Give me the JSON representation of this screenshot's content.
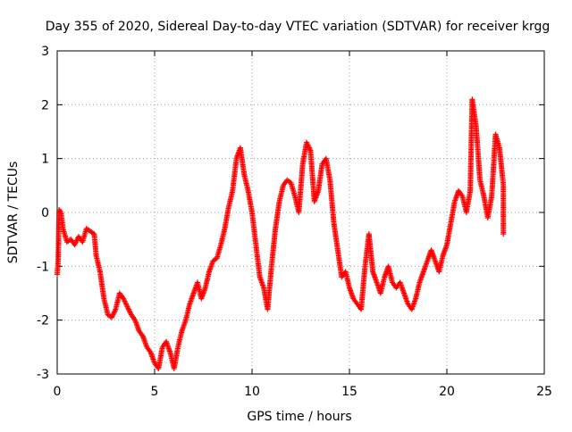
{
  "chart_data": {
    "type": "scatter",
    "title": "Day 355 of 2020, Sidereal Day-to-day VTEC variation (SDTVAR) for receiver krgg",
    "xlabel": "GPS time / hours",
    "ylabel": "SDTVAR / TECUs",
    "xlim": [
      0,
      25
    ],
    "ylim": [
      -3,
      3
    ],
    "xticks": [
      "0",
      "5",
      "10",
      "15",
      "20",
      "25"
    ],
    "yticks": [
      "-3",
      "-2",
      "-1",
      "0",
      "1",
      "2",
      "3"
    ],
    "grid": true,
    "marker": "plus",
    "series": [
      {
        "name": "SDTVAR",
        "color": "#ff0000",
        "points": [
          [
            0.0,
            -1.15
          ],
          [
            0.05,
            -0.9
          ],
          [
            0.1,
            0.05
          ],
          [
            0.2,
            0.0
          ],
          [
            0.3,
            -0.3
          ],
          [
            0.5,
            -0.55
          ],
          [
            0.7,
            -0.5
          ],
          [
            0.9,
            -0.6
          ],
          [
            1.1,
            -0.45
          ],
          [
            1.3,
            -0.55
          ],
          [
            1.5,
            -0.3
          ],
          [
            1.7,
            -0.35
          ],
          [
            1.9,
            -0.4
          ],
          [
            2.0,
            -0.8
          ],
          [
            2.2,
            -1.1
          ],
          [
            2.4,
            -1.6
          ],
          [
            2.6,
            -1.9
          ],
          [
            2.8,
            -1.95
          ],
          [
            3.0,
            -1.8
          ],
          [
            3.2,
            -1.5
          ],
          [
            3.4,
            -1.6
          ],
          [
            3.6,
            -1.75
          ],
          [
            3.8,
            -1.9
          ],
          [
            4.0,
            -2.0
          ],
          [
            4.2,
            -2.2
          ],
          [
            4.4,
            -2.3
          ],
          [
            4.6,
            -2.5
          ],
          [
            4.8,
            -2.6
          ],
          [
            5.0,
            -2.8
          ],
          [
            5.2,
            -2.9
          ],
          [
            5.4,
            -2.5
          ],
          [
            5.6,
            -2.4
          ],
          [
            5.8,
            -2.6
          ],
          [
            6.0,
            -2.9
          ],
          [
            6.2,
            -2.5
          ],
          [
            6.4,
            -2.2
          ],
          [
            6.6,
            -2.0
          ],
          [
            6.8,
            -1.7
          ],
          [
            7.0,
            -1.5
          ],
          [
            7.2,
            -1.3
          ],
          [
            7.4,
            -1.6
          ],
          [
            7.6,
            -1.4
          ],
          [
            7.8,
            -1.1
          ],
          [
            8.0,
            -0.9
          ],
          [
            8.2,
            -0.85
          ],
          [
            8.4,
            -0.6
          ],
          [
            8.6,
            -0.3
          ],
          [
            8.8,
            0.1
          ],
          [
            9.0,
            0.4
          ],
          [
            9.2,
            1.0
          ],
          [
            9.4,
            1.2
          ],
          [
            9.6,
            0.7
          ],
          [
            9.8,
            0.4
          ],
          [
            10.0,
            0.0
          ],
          [
            10.2,
            -0.6
          ],
          [
            10.4,
            -1.2
          ],
          [
            10.6,
            -1.4
          ],
          [
            10.8,
            -1.8
          ],
          [
            11.0,
            -1.0
          ],
          [
            11.2,
            -0.3
          ],
          [
            11.4,
            0.2
          ],
          [
            11.6,
            0.5
          ],
          [
            11.8,
            0.6
          ],
          [
            12.0,
            0.55
          ],
          [
            12.2,
            0.3
          ],
          [
            12.4,
            0.0
          ],
          [
            12.6,
            0.9
          ],
          [
            12.8,
            1.3
          ],
          [
            13.0,
            1.15
          ],
          [
            13.2,
            0.2
          ],
          [
            13.4,
            0.4
          ],
          [
            13.6,
            0.9
          ],
          [
            13.8,
            1.0
          ],
          [
            14.0,
            0.6
          ],
          [
            14.2,
            -0.2
          ],
          [
            14.4,
            -0.7
          ],
          [
            14.6,
            -1.2
          ],
          [
            14.8,
            -1.1
          ],
          [
            15.0,
            -1.4
          ],
          [
            15.2,
            -1.6
          ],
          [
            15.4,
            -1.7
          ],
          [
            15.6,
            -1.8
          ],
          [
            15.8,
            -1.0
          ],
          [
            16.0,
            -0.4
          ],
          [
            16.2,
            -1.1
          ],
          [
            16.4,
            -1.3
          ],
          [
            16.6,
            -1.5
          ],
          [
            16.8,
            -1.2
          ],
          [
            17.0,
            -1.0
          ],
          [
            17.2,
            -1.3
          ],
          [
            17.4,
            -1.4
          ],
          [
            17.6,
            -1.3
          ],
          [
            17.8,
            -1.5
          ],
          [
            18.0,
            -1.7
          ],
          [
            18.2,
            -1.8
          ],
          [
            18.4,
            -1.6
          ],
          [
            18.6,
            -1.3
          ],
          [
            18.8,
            -1.1
          ],
          [
            19.0,
            -0.9
          ],
          [
            19.2,
            -0.7
          ],
          [
            19.4,
            -0.9
          ],
          [
            19.6,
            -1.1
          ],
          [
            19.8,
            -0.8
          ],
          [
            20.0,
            -0.6
          ],
          [
            20.2,
            -0.2
          ],
          [
            20.4,
            0.2
          ],
          [
            20.6,
            0.4
          ],
          [
            20.8,
            0.3
          ],
          [
            21.0,
            0.0
          ],
          [
            21.2,
            0.4
          ],
          [
            21.3,
            2.1
          ],
          [
            21.5,
            1.6
          ],
          [
            21.7,
            0.6
          ],
          [
            21.9,
            0.3
          ],
          [
            22.1,
            -0.1
          ],
          [
            22.3,
            0.3
          ],
          [
            22.5,
            1.45
          ],
          [
            22.7,
            1.2
          ],
          [
            22.9,
            0.5
          ],
          [
            22.9,
            -0.4
          ]
        ]
      }
    ]
  }
}
